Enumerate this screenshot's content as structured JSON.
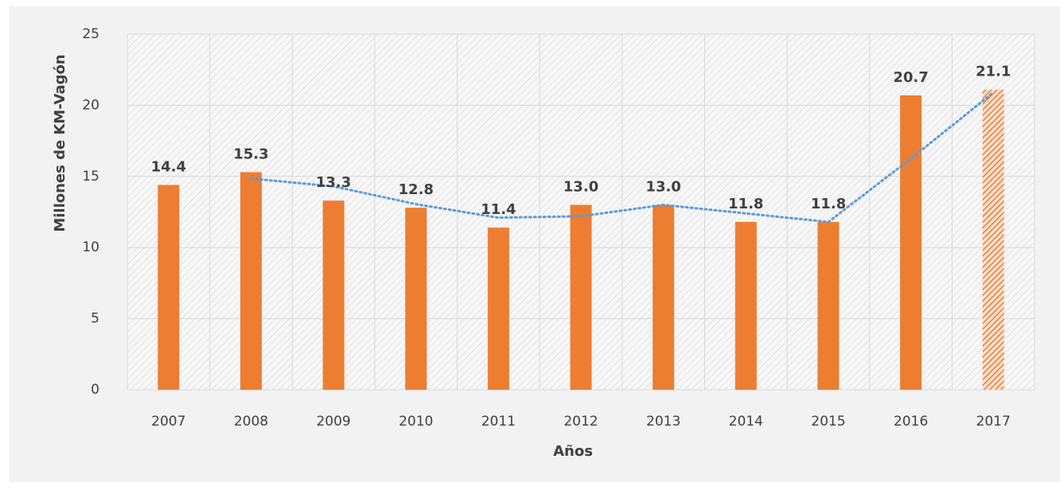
{
  "chart_data": {
    "type": "bar",
    "xlabel": "Años",
    "ylabel": "Millones de KM-Vagón",
    "categories": [
      "2007",
      "2008",
      "2009",
      "2010",
      "2011",
      "2012",
      "2013",
      "2014",
      "2015",
      "2016",
      "2017"
    ],
    "values": [
      14.4,
      15.3,
      13.3,
      12.8,
      11.4,
      13.0,
      13.0,
      11.8,
      11.8,
      20.7,
      21.1
    ],
    "value_labels": [
      "14.4",
      "15.3",
      "13.3",
      "12.8",
      "11.4",
      "13.0",
      "13.0",
      "11.8",
      "11.8",
      "20.7",
      "21.1"
    ],
    "hatched": [
      false,
      false,
      false,
      false,
      false,
      false,
      false,
      false,
      false,
      false,
      true
    ],
    "color": "#ed7d31",
    "trendline": {
      "color": "#5b9bd5",
      "values": [
        null,
        14.85,
        14.3,
        13.05,
        12.1,
        12.2,
        13.0,
        12.4,
        11.8,
        16.25,
        20.9
      ]
    },
    "ylim": [
      0,
      25
    ],
    "yticks": [
      0,
      5,
      10,
      15,
      20,
      25
    ],
    "grid": true
  }
}
